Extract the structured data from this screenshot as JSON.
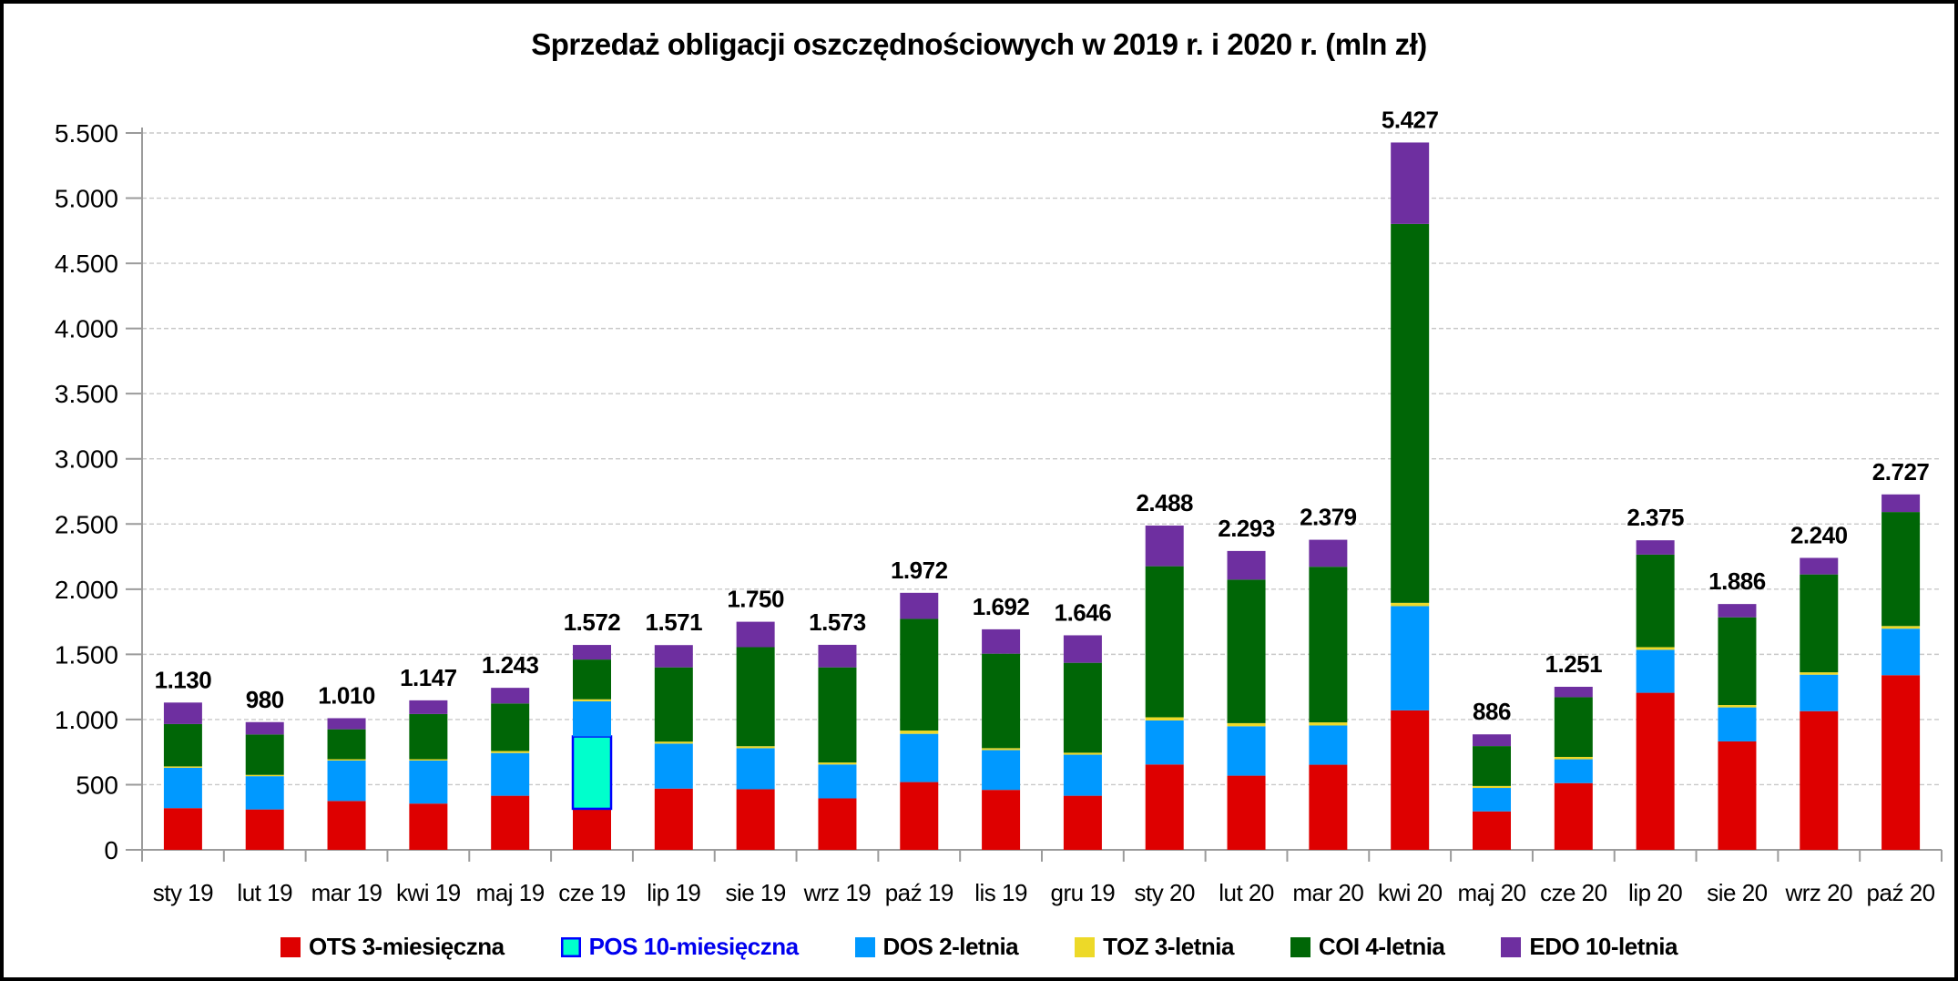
{
  "figure": {
    "background": "#FFFFFF",
    "frame_color": "#000000",
    "axis_color": "#9B9B9B",
    "gridline_color": "#C9C9C9",
    "text_color": "#000000"
  },
  "chart_data": {
    "type": "bar",
    "stacked": true,
    "title": "Sprzedaż obligacji oszczędnościowych w 2019 r. i 2020 r. (mln zł)",
    "unit": "mln zł",
    "grid": true,
    "legend_position": "bottom",
    "categories": [
      "sty 19",
      "lut 19",
      "mar 19",
      "kwi 19",
      "maj 19",
      "cze 19",
      "lip 19",
      "sie 19",
      "wrz 19",
      "paź 19",
      "lis 19",
      "gru 19",
      "sty 20",
      "lut 20",
      "mar 20",
      "kwi 20",
      "maj 20",
      "cze 20",
      "lip 20",
      "sie 20",
      "wrz 20",
      "paź 20"
    ],
    "series": [
      {
        "key": "ots",
        "name": "OTS 3-miesięczna",
        "color": "#DE0000",
        "label_color": "#000000",
        "values": [
          320,
          310,
          375,
          355,
          415,
          315,
          470,
          465,
          395,
          520,
          460,
          415,
          655,
          569,
          653,
          1070,
          295,
          512,
          1205,
          832,
          1064,
          1340
        ]
      },
      {
        "key": "pos",
        "name": "POS 10-miesięczna",
        "color": "#00FFCC",
        "border_color": "#0000FF",
        "label_color": "#0000EE",
        "values": [
          0,
          0,
          0,
          0,
          0,
          555,
          0,
          0,
          0,
          0,
          0,
          0,
          0,
          0,
          0,
          0,
          0,
          0,
          0,
          0,
          0,
          0
        ]
      },
      {
        "key": "dos",
        "name": "DOS 2-letnia",
        "color": "#0099FF",
        "label_color": "#000000",
        "values": [
          310,
          255,
          310,
          330,
          328,
          270,
          345,
          315,
          260,
          370,
          305,
          315,
          338,
          379,
          301,
          800,
          180,
          183,
          330,
          261,
          280,
          357
        ]
      },
      {
        "key": "toz",
        "name": "TOZ 3-letnia",
        "color": "#EDD928",
        "label_color": "#000000",
        "values": [
          10,
          10,
          10,
          10,
          15,
          15,
          15,
          15,
          15,
          25,
          15,
          15,
          24,
          24,
          24,
          25,
          15,
          18,
          20,
          18,
          18,
          20
        ]
      },
      {
        "key": "coi",
        "name": "COI 4-letnia",
        "color": "#006606",
        "label_color": "#000000",
        "values": [
          325,
          310,
          230,
          347,
          365,
          305,
          570,
          760,
          730,
          857,
          725,
          690,
          1159,
          1101,
          1194,
          2907,
          306,
          458,
          710,
          673,
          751,
          875
        ]
      },
      {
        "key": "edo",
        "name": "EDO 10-letnia",
        "color": "#6E2FA0",
        "label_color": "#000000",
        "values": [
          165,
          95,
          85,
          105,
          120,
          112,
          171,
          195,
          173,
          200,
          187,
          211,
          312,
          220,
          207,
          625,
          90,
          80,
          110,
          102,
          127,
          135
        ]
      }
    ],
    "totals": [
      1130,
      980,
      1010,
      1147,
      1243,
      1572,
      1571,
      1750,
      1573,
      1972,
      1692,
      1646,
      2488,
      2293,
      2379,
      5427,
      886,
      1251,
      2375,
      1886,
      2240,
      2727
    ],
    "total_labels": [
      "1.130",
      "980",
      "1.010",
      "1.147",
      "1.243",
      "1.572",
      "1.571",
      "1.750",
      "1.573",
      "1.972",
      "1.692",
      "1.646",
      "2.488",
      "2.293",
      "2.379",
      "5.427",
      "886",
      "1.251",
      "2.375",
      "1.886",
      "2.240",
      "2.727"
    ],
    "y_axis": {
      "min": 0,
      "max": 5500,
      "step": 500,
      "tick_labels": [
        "0",
        "500",
        "1.000",
        "1.500",
        "2.000",
        "2.500",
        "3.000",
        "3.500",
        "4.000",
        "4.500",
        "5.000",
        "5.500"
      ]
    }
  }
}
